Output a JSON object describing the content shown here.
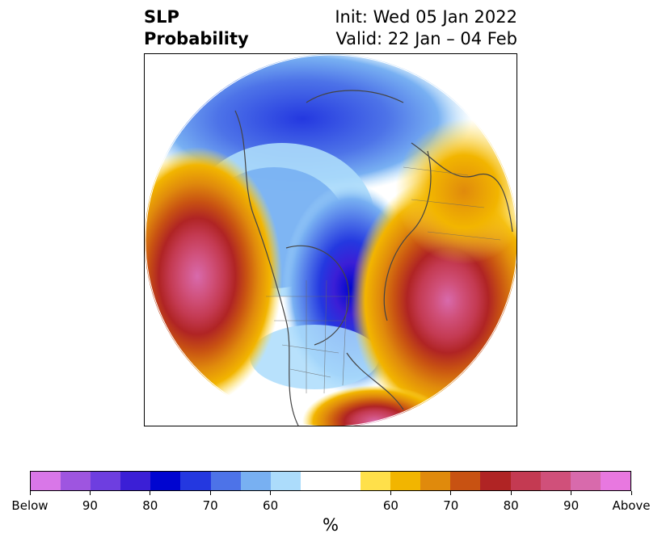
{
  "title": {
    "left_line1": "SLP",
    "left_line2": "Probability",
    "right_line1": "Init: Wed 05 Jan 2022",
    "right_line2": "Valid: 22 Jan – 04 Feb"
  },
  "colorbar": {
    "colors": [
      "#d977e8",
      "#9e55e0",
      "#6e3ee0",
      "#3b1fd6",
      "#0005d0",
      "#2438e0",
      "#4d73e8",
      "#78b0f2",
      "#acdcfb",
      "#ffffff",
      "#ffffff",
      "#ffe04a",
      "#f2b500",
      "#e08a0c",
      "#c85212",
      "#b02424",
      "#c43a52",
      "#d0507a",
      "#d86aac",
      "#e878e0"
    ],
    "tick_labels": [
      "Below",
      "90",
      "80",
      "70",
      "60",
      "60",
      "70",
      "80",
      "90",
      "Above"
    ],
    "unit": "%"
  }
}
